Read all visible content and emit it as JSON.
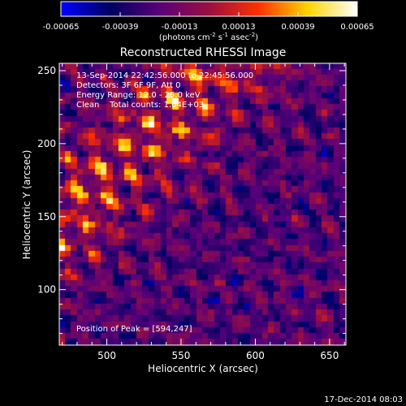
{
  "chart_data": {
    "type": "heatmap",
    "title": "Reconstructed RHESSI Image",
    "xlabel": "Heliocentric X (arcsec)",
    "ylabel": "Heliocentric Y (arcsec)",
    "xlim": [
      468,
      661
    ],
    "ylim": [
      62,
      255
    ],
    "x_ticks": [
      500,
      550,
      600,
      650
    ],
    "y_ticks": [
      100,
      150,
      200,
      250
    ],
    "colorbar": {
      "min": -0.00065,
      "max": 0.00065,
      "ticks": [
        "-0.00065",
        "-0.00039",
        "-0.00013",
        "0.00013",
        "0.00039",
        "0.00065"
      ],
      "label": "(photons cm-2 s-1 asec-2)",
      "colormap": [
        "#0000ff",
        "#000060",
        "#5a007a",
        "#9a1040",
        "#ff3000",
        "#ffd400",
        "#ffffff"
      ]
    },
    "grid": {
      "rows": 48,
      "cols": 48,
      "pixel_size_arcsec": 4,
      "peak_position": [
        594,
        247
      ],
      "description_values": "interference-pattern image; bright ripples along diagonal band"
    },
    "annotations": [
      "13-Sep-2014 22:42:56.000 to 22:45:56.000",
      "Detectors: 3F 6F 9F, Att 0",
      "Energy Range: 12.0 - 25.0 keV",
      "Clean    Total counts: 1.04E+03",
      "Position of Peak = [594,247]"
    ],
    "footer_date": "17-Dec-2014 08:03"
  }
}
